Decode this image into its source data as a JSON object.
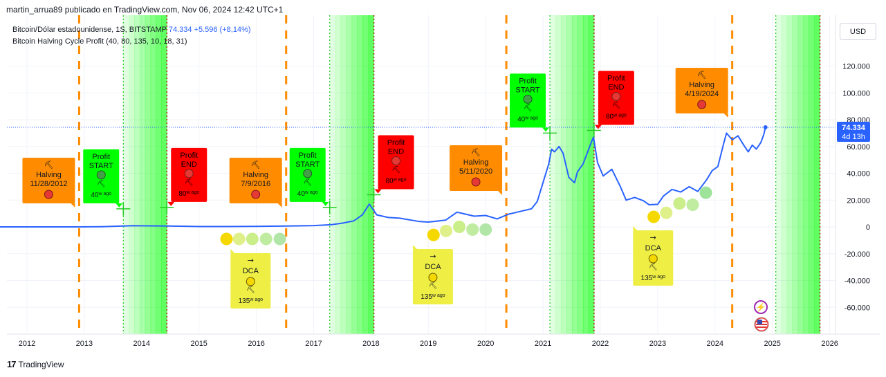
{
  "published_line": "martin_arrua89 publicado en TradingView.com, Nov 06, 2024 12:42 UTC+1",
  "legend": {
    "symbol": "Bitcoin/Dólar estadounidense, 1S, BITSTAMP",
    "price": "74.334",
    "change": "+5.596 (+8,14%)",
    "indicator": "Bitcoin Halving Cycle Profit (40, 80, 135, 10, 18, 31)"
  },
  "currency_button": "USD",
  "footer": {
    "logo_mark": "17",
    "brand": "TradingView"
  },
  "price_badge": {
    "price": "74.334",
    "countdown": "4d 13h"
  },
  "colors": {
    "price_line": "#2962ff",
    "halving_box": "#ff8c00",
    "profit_start_box": "#00ff00",
    "profit_end_box": "#ff0000",
    "dca_box": "#eeee44",
    "green_zone": "#00ff00",
    "halving_line": "#ff8c00",
    "cross": "#22cc22"
  },
  "chart_data": {
    "type": "line",
    "title": "",
    "xlabel": "",
    "ylabel": "",
    "xlim": [
      2011.5,
      2026.2
    ],
    "ylim": [
      -80000,
      140000
    ],
    "x_ticks": [
      "2012",
      "2013",
      "2014",
      "2015",
      "2016",
      "2017",
      "2018",
      "2019",
      "2020",
      "2021",
      "2022",
      "2023",
      "2024",
      "2025",
      "2026"
    ],
    "y_ticks": [
      {
        "value": 120000,
        "label": "120.000"
      },
      {
        "value": 100000,
        "label": "100.000"
      },
      {
        "value": 80000,
        "label": "80.000"
      },
      {
        "value": 60000,
        "label": "60.000"
      },
      {
        "value": 40000,
        "label": "40.000"
      },
      {
        "value": 20000,
        "label": "20.000"
      },
      {
        "value": 0,
        "label": "0"
      },
      {
        "value": -20000,
        "label": "-20.000"
      },
      {
        "value": -40000,
        "label": "-40.000"
      },
      {
        "value": -60000,
        "label": "-60.000"
      }
    ],
    "series": [
      {
        "points": [
          [
            2011.5,
            5
          ],
          [
            2012.0,
            6
          ],
          [
            2012.5,
            8
          ],
          [
            2012.9,
            12
          ],
          [
            2013.3,
            150
          ],
          [
            2013.85,
            900
          ],
          [
            2014.0,
            800
          ],
          [
            2014.5,
            600
          ],
          [
            2015.0,
            250
          ],
          [
            2015.5,
            280
          ],
          [
            2016.0,
            420
          ],
          [
            2016.5,
            650
          ],
          [
            2017.0,
            980
          ],
          [
            2017.3,
            1600
          ],
          [
            2017.5,
            2800
          ],
          [
            2017.7,
            4500
          ],
          [
            2017.85,
            9000
          ],
          [
            2017.97,
            17000
          ],
          [
            2018.02,
            14000
          ],
          [
            2018.1,
            9000
          ],
          [
            2018.3,
            7000
          ],
          [
            2018.5,
            6500
          ],
          [
            2018.85,
            4000
          ],
          [
            2019.0,
            3600
          ],
          [
            2019.3,
            5000
          ],
          [
            2019.5,
            11000
          ],
          [
            2019.6,
            10000
          ],
          [
            2019.8,
            8000
          ],
          [
            2020.0,
            8500
          ],
          [
            2020.2,
            6000
          ],
          [
            2020.4,
            9500
          ],
          [
            2020.6,
            11500
          ],
          [
            2020.8,
            13500
          ],
          [
            2020.9,
            19000
          ],
          [
            2021.0,
            33000
          ],
          [
            2021.1,
            47000
          ],
          [
            2021.15,
            58000
          ],
          [
            2021.2,
            56000
          ],
          [
            2021.28,
            60000
          ],
          [
            2021.35,
            55000
          ],
          [
            2021.45,
            37000
          ],
          [
            2021.55,
            33000
          ],
          [
            2021.6,
            41000
          ],
          [
            2021.7,
            47000
          ],
          [
            2021.85,
            64000
          ],
          [
            2021.88,
            67000
          ],
          [
            2021.95,
            48000
          ],
          [
            2022.05,
            38000
          ],
          [
            2022.2,
            43000
          ],
          [
            2022.35,
            30000
          ],
          [
            2022.45,
            20000
          ],
          [
            2022.6,
            22000
          ],
          [
            2022.75,
            19500
          ],
          [
            2022.85,
            16500
          ],
          [
            2023.0,
            16800
          ],
          [
            2023.1,
            23000
          ],
          [
            2023.25,
            28000
          ],
          [
            2023.4,
            26000
          ],
          [
            2023.55,
            30000
          ],
          [
            2023.7,
            26500
          ],
          [
            2023.85,
            35000
          ],
          [
            2023.95,
            42000
          ],
          [
            2024.05,
            45000
          ],
          [
            2024.15,
            62000
          ],
          [
            2024.2,
            70000
          ],
          [
            2024.3,
            65000
          ],
          [
            2024.4,
            68000
          ],
          [
            2024.5,
            61000
          ],
          [
            2024.58,
            56000
          ],
          [
            2024.65,
            61000
          ],
          [
            2024.72,
            58000
          ],
          [
            2024.8,
            63000
          ],
          [
            2024.85,
            69000
          ],
          [
            2024.88,
            74334
          ]
        ]
      }
    ],
    "halvings": [
      {
        "x": 2012.91,
        "label": "Halving",
        "date": "11/28/2012",
        "icon": "⛏"
      },
      {
        "x": 2016.52,
        "label": "Halving",
        "date": "7/9/2016",
        "icon": "⛏"
      },
      {
        "x": 2020.36,
        "label": "Halving",
        "date": "5/11/2020",
        "icon": "⛏"
      },
      {
        "x": 2024.3,
        "label": "Halving",
        "date": "4/19/2024",
        "icon": "⛏"
      }
    ],
    "profit_zones": [
      {
        "start": 2013.68,
        "end": 2014.44
      },
      {
        "start": 2017.28,
        "end": 2018.05
      },
      {
        "start": 2021.12,
        "end": 2021.89
      },
      {
        "start": 2025.06,
        "end": 2025.83
      }
    ],
    "profit_start_labels": [
      {
        "x": 2013.68,
        "y": 13500,
        "line1": "Profit",
        "line2": "START",
        "age": "40",
        "unit": "w",
        "suffix": "ago"
      },
      {
        "x": 2017.28,
        "y": 14500,
        "line1": "Profit",
        "line2": "START",
        "age": "40",
        "unit": "w",
        "suffix": "ago"
      },
      {
        "x": 2021.12,
        "y": 70000,
        "line1": "Profit",
        "line2": "START",
        "age": "40",
        "unit": "w",
        "suffix": "ago"
      }
    ],
    "profit_end_labels": [
      {
        "x": 2014.44,
        "y": 14500,
        "line1": "Profit",
        "line2": "END",
        "age": "80",
        "unit": "w",
        "suffix": "ago"
      },
      {
        "x": 2018.05,
        "y": 24000,
        "line1": "Profit",
        "line2": "END",
        "age": "80",
        "unit": "w",
        "suffix": "ago"
      },
      {
        "x": 2021.89,
        "y": 72000,
        "line1": "Profit",
        "line2": "END",
        "age": "80",
        "unit": "w",
        "suffix": "ago"
      }
    ],
    "dca_labels": [
      {
        "x": 2015.9,
        "line1": "→",
        "line2": "DCA",
        "age": "135",
        "unit": "w",
        "suffix": "ago"
      },
      {
        "x": 2019.08,
        "line1": "→",
        "line2": "DCA",
        "age": "135",
        "unit": "w",
        "suffix": "ago"
      },
      {
        "x": 2022.92,
        "line1": "→",
        "line2": "DCA",
        "age": "135",
        "unit": "w",
        "suffix": "ago"
      }
    ],
    "dca_dots": [
      {
        "x": 2015.48,
        "y": -9000,
        "color": "#f5d800"
      },
      {
        "x": 2015.7,
        "y": -9000,
        "color": "#dff08a"
      },
      {
        "x": 2015.93,
        "y": -9000,
        "color": "#c9ee8a"
      },
      {
        "x": 2016.17,
        "y": -9000,
        "color": "#bfeca0"
      },
      {
        "x": 2016.41,
        "y": -9000,
        "color": "#b2e6a8"
      },
      {
        "x": 2019.09,
        "y": -6000,
        "color": "#f5d800"
      },
      {
        "x": 2019.31,
        "y": -3000,
        "color": "#dff08a"
      },
      {
        "x": 2019.54,
        "y": 0,
        "color": "#c9ee8a"
      },
      {
        "x": 2019.77,
        "y": -2000,
        "color": "#bfeca0"
      },
      {
        "x": 2020.0,
        "y": -2000,
        "color": "#b2e6a8"
      },
      {
        "x": 2022.93,
        "y": 7500,
        "color": "#f5d800"
      },
      {
        "x": 2023.15,
        "y": 10500,
        "color": "#dff08a"
      },
      {
        "x": 2023.38,
        "y": 17500,
        "color": "#c9ee8a"
      },
      {
        "x": 2023.61,
        "y": 16500,
        "color": "#bfeca0"
      },
      {
        "x": 2023.84,
        "y": 25500,
        "color": "#9ee39a"
      }
    ],
    "last_price": 74334
  }
}
